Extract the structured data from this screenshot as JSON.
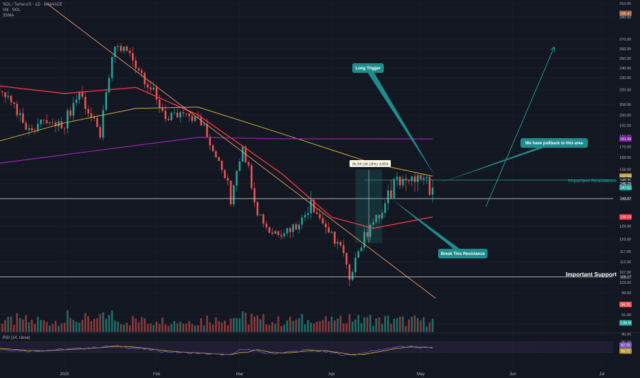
{
  "header": {
    "symbol_line": "SOL / TetherUS · 1D · BINANCE",
    "vol_line": "Vol · SOL",
    "ma_line": "3SMA"
  },
  "rsi_label": "RSI (14, close)",
  "colors": {
    "background": "#131722",
    "up": "#26a69a",
    "down": "#ef5350",
    "ma_red": "#f23645",
    "ma_yellow": "#d8b23a",
    "ma_purple": "#9c27b0",
    "trendline": "#f0a070",
    "teal_callout": "#1e8c8c",
    "rsi_line": "#7e57c2"
  },
  "annotations": {
    "long_trigger": "Long Trigger",
    "pullback": "We have pullback to this area",
    "break_resistance": "Break This Resistance",
    "important_resistance": "Important Resistance",
    "important_support": "Important Support",
    "measure": "36.59 (30.18%) 3,659"
  },
  "price_badges": [
    {
      "label": "295.47",
      "value": 295.47,
      "color": "#9c5a3c"
    },
    {
      "label": "181.90",
      "value": 181.9,
      "color": "#7b1fa2"
    },
    {
      "label": "152.55",
      "value": 152.55,
      "color": "#b8962e"
    },
    {
      "label": "149.31",
      "value": 149.31,
      "color": "#1e222d"
    },
    {
      "label": "148.29",
      "value": 148.29,
      "color": "#1e222d"
    },
    {
      "label": "147.01",
      "value": 147.01,
      "color": "#26a69a"
    },
    {
      "label": "143.67",
      "value": 143.67,
      "color": "#1e222d"
    },
    {
      "label": "135.10",
      "value": 135.1,
      "color": "#f23645"
    },
    {
      "label": "105.17",
      "value": 105.17,
      "color": "#1e222d"
    },
    {
      "label": "94.75",
      "value": 94.75,
      "color": "#ef5350"
    },
    {
      "label": "1.86 M",
      "value": 86.5,
      "color": "#26a69a"
    }
  ],
  "rsi_badges": [
    {
      "label": "57.72",
      "value": 57.72,
      "color": "#7e57c2"
    },
    {
      "label": "56.72",
      "value": 56.72,
      "color": "#b8962e"
    }
  ],
  "chart_data": {
    "type": "candlestick",
    "x_ticks": [
      "2025",
      "Feb",
      "Mar",
      "Apr",
      "May",
      "Jun",
      "Jul"
    ],
    "y_ticks": [
      310,
      290,
      270,
      260,
      250,
      240,
      230,
      220,
      208,
      200,
      192,
      184,
      176,
      168,
      158,
      149.31,
      148.29,
      143.67,
      135,
      129,
      123,
      117,
      112,
      107,
      103,
      99,
      91,
      86,
      80
    ],
    "rsi_ticks": [
      80,
      40
    ],
    "levels": {
      "important_resistance": 149.31,
      "support_line": 143.67,
      "important_support": 105.17
    },
    "anchors": [
      {
        "date": "2024-12-02",
        "close": 225
      },
      {
        "date": "2024-12-08",
        "close": 224
      },
      {
        "date": "2024-12-13",
        "close": 215
      },
      {
        "date": "2024-12-20",
        "close": 190
      },
      {
        "date": "2024-12-25",
        "close": 196
      },
      {
        "date": "2024-12-31",
        "close": 190
      },
      {
        "date": "2025-01-06",
        "close": 218
      },
      {
        "date": "2025-01-13",
        "close": 183
      },
      {
        "date": "2025-01-18",
        "close": 262
      },
      {
        "date": "2025-01-22",
        "close": 258
      },
      {
        "date": "2025-01-27",
        "close": 235
      },
      {
        "date": "2025-02-01",
        "close": 212
      },
      {
        "date": "2025-02-05",
        "close": 196
      },
      {
        "date": "2025-02-11",
        "close": 201
      },
      {
        "date": "2025-02-17",
        "close": 193
      },
      {
        "date": "2025-02-21",
        "close": 168
      },
      {
        "date": "2025-02-26",
        "close": 141
      },
      {
        "date": "2025-03-02",
        "close": 176
      },
      {
        "date": "2025-03-06",
        "close": 142
      },
      {
        "date": "2025-03-11",
        "close": 126
      },
      {
        "date": "2025-03-17",
        "close": 128
      },
      {
        "date": "2025-03-21",
        "close": 130
      },
      {
        "date": "2025-03-25",
        "close": 143
      },
      {
        "date": "2025-03-31",
        "close": 126
      },
      {
        "date": "2025-04-04",
        "close": 120
      },
      {
        "date": "2025-04-07",
        "close": 104
      },
      {
        "date": "2025-04-09",
        "close": 114
      },
      {
        "date": "2025-04-14",
        "close": 130
      },
      {
        "date": "2025-04-18",
        "close": 137
      },
      {
        "date": "2025-04-23",
        "close": 152
      },
      {
        "date": "2025-04-27",
        "close": 149
      },
      {
        "date": "2025-05-01",
        "close": 150
      },
      {
        "date": "2025-05-05",
        "close": 147
      }
    ],
    "sma_red": [
      {
        "date": "2024-11-30",
        "value": 226
      },
      {
        "date": "2025-01-01",
        "value": 217
      },
      {
        "date": "2025-01-25",
        "value": 222
      },
      {
        "date": "2025-02-15",
        "value": 200
      },
      {
        "date": "2025-03-15",
        "value": 155
      },
      {
        "date": "2025-04-01",
        "value": 135
      },
      {
        "date": "2025-04-15",
        "value": 128
      },
      {
        "date": "2025-05-05",
        "value": 135.1
      }
    ],
    "sma_yellow": [
      {
        "date": "2024-11-30",
        "value": 174
      },
      {
        "date": "2025-01-01",
        "value": 194
      },
      {
        "date": "2025-01-25",
        "value": 205
      },
      {
        "date": "2025-02-15",
        "value": 206
      },
      {
        "date": "2025-03-15",
        "value": 186
      },
      {
        "date": "2025-04-15",
        "value": 163
      },
      {
        "date": "2025-05-05",
        "value": 152.55
      }
    ],
    "sma_purple": [
      {
        "date": "2024-11-30",
        "value": 160
      },
      {
        "date": "2025-01-01",
        "value": 170
      },
      {
        "date": "2025-02-15",
        "value": 183
      },
      {
        "date": "2025-03-15",
        "value": 182
      },
      {
        "date": "2025-05-05",
        "value": 181.9
      }
    ],
    "rsi": [
      {
        "date": "2024-12-02",
        "value": 60
      },
      {
        "date": "2024-12-20",
        "value": 45
      },
      {
        "date": "2025-01-06",
        "value": 55
      },
      {
        "date": "2025-01-18",
        "value": 65
      },
      {
        "date": "2025-02-05",
        "value": 42
      },
      {
        "date": "2025-02-26",
        "value": 30
      },
      {
        "date": "2025-03-02",
        "value": 55
      },
      {
        "date": "2025-03-11",
        "value": 35
      },
      {
        "date": "2025-03-25",
        "value": 50
      },
      {
        "date": "2025-04-07",
        "value": 28
      },
      {
        "date": "2025-04-23",
        "value": 62
      },
      {
        "date": "2025-05-05",
        "value": 57.72
      }
    ],
    "trendline": [
      {
        "date": "2024-12-26",
        "value": 310
      },
      {
        "date": "2025-05-06",
        "value": 97
      }
    ],
    "projection": [
      {
        "date": "2025-05-23",
        "value": 140
      },
      {
        "date": "2025-06-15",
        "value": 262
      }
    ],
    "measure_box": {
      "from_date": "2025-04-09",
      "to_date": "2025-04-18",
      "low": 121.2,
      "high": 157.79
    }
  }
}
